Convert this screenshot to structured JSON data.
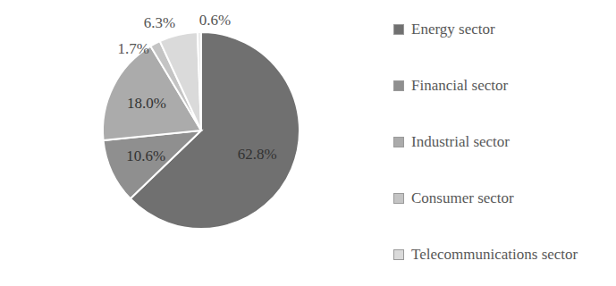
{
  "chart_data": {
    "type": "pie",
    "categories": [
      "Energy sector",
      "Financial sector",
      "Industrial sector",
      "Consumer sector",
      "Telecommunications sector",
      null
    ],
    "values": [
      62.8,
      10.6,
      18.0,
      1.7,
      6.3,
      0.6
    ],
    "value_labels": [
      "62.8%",
      "10.6%",
      "18.0%",
      "1.7%",
      "6.3%",
      "0.6%"
    ],
    "colors": [
      "#707070",
      "#8f8f8f",
      "#ababab",
      "#c4c4c4",
      "#dadada",
      "#ebebeb"
    ],
    "data_labels": true,
    "legend": "right"
  }
}
